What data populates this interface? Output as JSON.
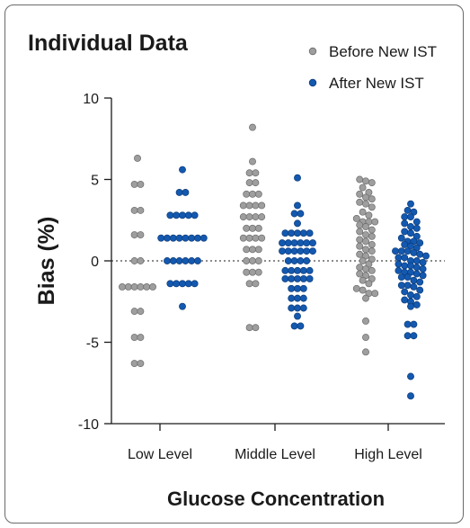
{
  "chart_data": {
    "type": "scatter",
    "title": "Individual Data",
    "xlabel": "Glucose Concentration",
    "ylabel": "Bias (%)",
    "ylim": [
      -10,
      10
    ],
    "yticks": [
      10,
      5,
      0,
      -5,
      -10
    ],
    "yticks_labels": [
      "10",
      "5",
      "0",
      "-5",
      "-10"
    ],
    "categories": [
      "Low Level",
      "Middle Level",
      "High Level"
    ],
    "reference_line": 0,
    "grid": false,
    "legend_position": "top-right",
    "series": [
      {
        "name": "Before New IST",
        "color": "#9e9e9e",
        "values": [
          [
            6.3,
            4.7,
            3.1,
            1.6,
            0,
            -1.6,
            -1.6,
            -1.6,
            -3.1,
            -4.7,
            -6.3,
            4.7,
            3.1,
            1.6,
            0,
            -1.6,
            -1.6,
            -1.6,
            -3.1,
            -4.7,
            -6.3
          ],
          [
            8.2,
            6.1,
            5.4,
            5.4,
            4.8,
            4.8,
            4.1,
            4.1,
            4.1,
            3.4,
            3.4,
            3.4,
            3.4,
            2.7,
            2.7,
            2.7,
            2.7,
            2.0,
            2.0,
            2.0,
            1.4,
            1.4,
            1.4,
            1.4,
            0.7,
            0.7,
            0.7,
            0,
            0,
            0,
            -0.7,
            -0.7,
            -0.7,
            -1.4,
            -1.4,
            -4.1,
            -4.1
          ],
          [
            5.0,
            4.9,
            4.5,
            4.2,
            3.9,
            3.6,
            3.3,
            3.0,
            2.6,
            2.4,
            2.2,
            1.9,
            1.6,
            1.3,
            1.0,
            0.7,
            0.4,
            0.1,
            -0.2,
            -0.5,
            -0.8,
            -1.1,
            -1.4,
            -1.7,
            -2.0,
            -2.3,
            2.4,
            1.8,
            0.9,
            0.3,
            -0.6,
            -1.2,
            -3.7,
            -4.7,
            -5.6,
            3.5,
            2.1,
            1.2,
            -0.4,
            -1.8,
            4.8,
            0.6,
            3.8,
            2.8,
            -2.0,
            1.5,
            0.0,
            -0.9,
            4.1,
            2.4
          ]
        ]
      },
      {
        "name": "After New IST",
        "color": "#1459b0",
        "values": [
          [
            5.6,
            4.2,
            2.8,
            1.4,
            1.4,
            0,
            0,
            -1.4,
            -2.8,
            4.2,
            2.8,
            2.8,
            1.4,
            1.4,
            1.4,
            0,
            0,
            -1.4,
            -1.4,
            1.4,
            2.8,
            1.4,
            0,
            -1.4,
            2.8,
            1.4,
            0,
            -1.4
          ],
          [
            5.1,
            3.4,
            2.9,
            2.9,
            2.3,
            1.7,
            1.7,
            1.7,
            1.1,
            1.1,
            1.1,
            1.1,
            0.6,
            0.6,
            0.6,
            0,
            0,
            0,
            -0.6,
            -0.6,
            -0.6,
            -1.1,
            -1.1,
            -1.1,
            -1.7,
            -1.7,
            -2.3,
            -2.3,
            -2.9,
            -2.9,
            -3.4,
            -4.0,
            -4.0,
            1.7,
            1.1,
            0.6,
            0,
            -0.6,
            -1.1,
            -1.7,
            -2.3,
            1.7,
            0.6,
            -0.6,
            1.1,
            -1.1,
            -2.9,
            0.6
          ],
          [
            3.5,
            3.1,
            2.7,
            2.3,
            2.0,
            1.7,
            1.4,
            1.1,
            0.8,
            0.5,
            0.2,
            -0.1,
            -0.4,
            -0.7,
            -1.0,
            -1.3,
            -1.6,
            -1.9,
            -2.2,
            -2.5,
            -2.8,
            3.0,
            2.4,
            1.8,
            1.2,
            0.6,
            0.0,
            -0.6,
            -1.2,
            -1.8,
            -2.4,
            -3.9,
            -4.6,
            -7.1,
            -8.3,
            2.1,
            1.5,
            0.9,
            0.3,
            -0.3,
            -0.9,
            -1.5,
            -2.1,
            0.4,
            -0.5,
            0.0,
            -0.2,
            -0.7,
            0.6,
            1.2,
            -1.5,
            -3.9,
            -4.6,
            0.2,
            -1.0,
            2.7,
            1.0,
            -0.3,
            -2.7,
            0.6,
            -0.8
          ]
        ]
      }
    ]
  }
}
